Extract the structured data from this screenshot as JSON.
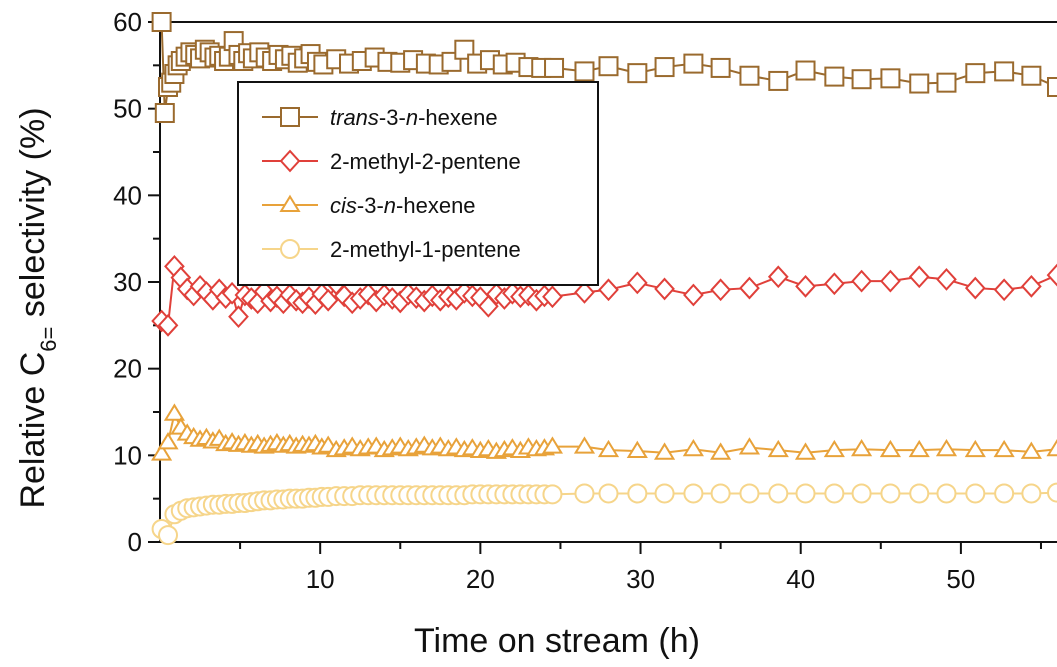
{
  "chart_data": {
    "type": "scatter",
    "xlabel": "Time on stream (h)",
    "ylabel_main": "Relative C",
    "ylabel_sub": "6=",
    "ylabel_rest": " selectivity (%)",
    "xlim": [
      0,
      56
    ],
    "ylim": [
      0,
      60
    ],
    "x_ticks": [
      10,
      20,
      30,
      40,
      50
    ],
    "y_ticks": [
      0,
      10,
      20,
      30,
      40,
      50,
      60
    ],
    "grid": false,
    "legend_position": "top-left",
    "series": [
      {
        "name_italic": "trans",
        "name_rest": "-3-",
        "name_italic2": "n",
        "name_rest2": "-hexene",
        "marker": "square",
        "color": "#9a6a2e",
        "x": [
          0.1,
          0.3,
          0.5,
          0.7,
          0.9,
          1.1,
          1.3,
          1.6,
          1.9,
          2.2,
          2.5,
          2.8,
          3.1,
          3.4,
          3.7,
          4.0,
          4.3,
          4.6,
          4.9,
          5.2,
          5.5,
          5.8,
          6.2,
          6.6,
          7.0,
          7.4,
          7.8,
          8.2,
          8.6,
          9.0,
          9.4,
          9.8,
          10.2,
          11.0,
          11.8,
          12.6,
          13.4,
          14.2,
          15.0,
          15.8,
          16.6,
          17.4,
          18.2,
          19.0,
          19.8,
          20.6,
          21.4,
          22.2,
          23.0,
          23.8,
          24.6,
          26.5,
          28.0,
          29.8,
          31.5,
          33.3,
          35.0,
          36.8,
          38.6,
          40.3,
          42.1,
          43.8,
          45.6,
          47.4,
          49.1,
          50.9,
          52.7,
          54.4,
          56.0
        ],
        "y": [
          60,
          49.5,
          52.5,
          53,
          54,
          55,
          55.5,
          56,
          56.5,
          56.2,
          55.8,
          56.8,
          56.5,
          55.9,
          56.1,
          55.5,
          56,
          57.8,
          56.2,
          55.5,
          56.4,
          55.8,
          56.5,
          55.9,
          55.5,
          56.2,
          55.7,
          56.1,
          55.3,
          55.8,
          56.3,
          55.4,
          55.1,
          55.7,
          55.2,
          55.5,
          55.9,
          55.4,
          55.3,
          55.6,
          55.2,
          55.1,
          55.4,
          56.8,
          55.2,
          55.6,
          55.1,
          55.3,
          54.8,
          54.7,
          54.7,
          54.3,
          54.9,
          54.1,
          54.8,
          55.2,
          54.7,
          53.8,
          53.2,
          54.4,
          53.7,
          53.4,
          53.5,
          52.9,
          53,
          54.1,
          54.3,
          53.8,
          52.5
        ]
      },
      {
        "name": "2-methyl-2-pentene",
        "marker": "diamond",
        "color": "#e0403a",
        "x": [
          0.1,
          0.5,
          0.9,
          1.3,
          1.7,
          2.1,
          2.5,
          2.9,
          3.3,
          3.7,
          4.1,
          4.5,
          4.9,
          5.3,
          5.7,
          6.1,
          6.5,
          6.9,
          7.3,
          7.7,
          8.1,
          8.5,
          8.9,
          9.3,
          9.7,
          10.1,
          10.5,
          11.0,
          11.5,
          12.0,
          12.5,
          13.0,
          13.5,
          14.0,
          14.5,
          15.0,
          15.5,
          16.0,
          16.5,
          17.0,
          17.5,
          18.0,
          18.5,
          19.0,
          19.5,
          20.0,
          20.5,
          21.0,
          21.5,
          22.0,
          22.5,
          23.0,
          23.5,
          24.0,
          24.5,
          26.5,
          28.0,
          29.8,
          31.5,
          33.3,
          35.0,
          36.8,
          38.6,
          40.3,
          42.1,
          43.8,
          45.6,
          47.4,
          49.1,
          50.9,
          52.7,
          54.4,
          56.0
        ],
        "y": [
          25.5,
          25,
          31.8,
          30.5,
          29.2,
          28.5,
          29.5,
          28.8,
          28,
          29.1,
          28.2,
          28.7,
          26,
          28.5,
          28.1,
          27.6,
          28.9,
          27.8,
          28.3,
          27.6,
          28.5,
          27.9,
          27.6,
          28.2,
          27.5,
          28.6,
          27.9,
          29.8,
          28.4,
          27.6,
          28.1,
          28.6,
          27.8,
          28.5,
          28.1,
          27.7,
          28.6,
          28.2,
          27.8,
          28.4,
          27.9,
          28.3,
          28,
          28.8,
          28.4,
          28.2,
          27.2,
          28.6,
          28.1,
          28.7,
          28.3,
          28.5,
          27.9,
          28.4,
          28.3,
          28.8,
          29.1,
          29.9,
          29.2,
          28.5,
          29.1,
          29.3,
          30.6,
          29.5,
          29.8,
          30.1,
          30.1,
          30.6,
          30.3,
          29.3,
          29.1,
          29.5,
          30.8
        ]
      },
      {
        "name_italic": "cis",
        "name_rest": "-3-",
        "name_italic2": "n",
        "name_rest2": "-hexene",
        "marker": "triangle",
        "color": "#e8a23a",
        "x": [
          0.1,
          0.5,
          0.9,
          1.3,
          1.7,
          2.1,
          2.5,
          2.9,
          3.3,
          3.7,
          4.1,
          4.5,
          4.9,
          5.3,
          5.7,
          6.1,
          6.5,
          6.9,
          7.3,
          7.7,
          8.1,
          8.5,
          8.9,
          9.3,
          9.7,
          10.1,
          10.5,
          11.0,
          11.5,
          12.0,
          12.5,
          13.0,
          13.5,
          14.0,
          14.5,
          15.0,
          15.5,
          16.0,
          16.5,
          17.0,
          17.5,
          18.0,
          18.5,
          19.0,
          19.5,
          20.0,
          20.5,
          21.0,
          21.5,
          22.0,
          22.5,
          23.0,
          23.5,
          24.0,
          24.5,
          26.5,
          28.0,
          29.8,
          31.5,
          33.3,
          35.0,
          36.8,
          38.6,
          40.3,
          42.1,
          43.8,
          45.6,
          47.4,
          49.1,
          50.9,
          52.7,
          54.4,
          56.0
        ],
        "y": [
          10.2,
          11.5,
          14.8,
          13.2,
          12.5,
          12.1,
          11.8,
          12,
          11.6,
          11.9,
          11.3,
          11.5,
          11.2,
          11.4,
          11.1,
          11.3,
          11,
          11.2,
          11.4,
          11.1,
          11.3,
          11,
          11.2,
          11.1,
          11.3,
          10.9,
          11.1,
          10.6,
          10.8,
          11,
          10.7,
          10.9,
          11,
          10.6,
          10.8,
          11,
          10.7,
          10.9,
          11.1,
          10.8,
          11,
          10.7,
          10.9,
          10.6,
          10.8,
          10.5,
          10.7,
          10.4,
          10.6,
          10.8,
          10.5,
          10.9,
          10.7,
          10.8,
          11,
          11,
          10.6,
          10.5,
          10.3,
          10.7,
          10.3,
          10.9,
          10.6,
          10.3,
          10.6,
          10.7,
          10.6,
          10.6,
          10.7,
          10.6,
          10.6,
          10.4,
          10.7
        ]
      },
      {
        "name": "2-methyl-1-pentene",
        "marker": "circle",
        "color": "#f6d58a",
        "x": [
          0.1,
          0.5,
          0.9,
          1.3,
          1.7,
          2.1,
          2.5,
          2.9,
          3.3,
          3.7,
          4.1,
          4.5,
          4.9,
          5.3,
          5.7,
          6.1,
          6.5,
          6.9,
          7.3,
          7.7,
          8.1,
          8.5,
          8.9,
          9.3,
          9.7,
          10.1,
          10.5,
          11.0,
          11.5,
          12.0,
          12.5,
          13.0,
          13.5,
          14.0,
          14.5,
          15.0,
          15.5,
          16.0,
          16.5,
          17.0,
          17.5,
          18.0,
          18.5,
          19.0,
          19.5,
          20.0,
          20.5,
          21.0,
          21.5,
          22.0,
          22.5,
          23.0,
          23.5,
          24.0,
          24.5,
          26.5,
          28.0,
          29.8,
          31.5,
          33.3,
          35.0,
          36.8,
          38.6,
          40.3,
          42.1,
          43.8,
          45.6,
          47.4,
          49.1,
          50.9,
          52.7,
          54.4,
          56.0
        ],
        "y": [
          1.5,
          0.8,
          3.2,
          3.6,
          3.9,
          4.0,
          4.1,
          4.2,
          4.3,
          4.3,
          4.4,
          4.4,
          4.5,
          4.5,
          4.6,
          4.7,
          4.8,
          4.8,
          4.9,
          4.9,
          5.0,
          5.0,
          5.0,
          5.1,
          5.1,
          5.2,
          5.2,
          5.3,
          5.3,
          5.3,
          5.4,
          5.4,
          5.4,
          5.4,
          5.4,
          5.4,
          5.4,
          5.4,
          5.4,
          5.4,
          5.4,
          5.4,
          5.4,
          5.4,
          5.5,
          5.5,
          5.5,
          5.5,
          5.5,
          5.5,
          5.5,
          5.5,
          5.5,
          5.5,
          5.5,
          5.6,
          5.6,
          5.6,
          5.6,
          5.6,
          5.6,
          5.6,
          5.6,
          5.6,
          5.6,
          5.6,
          5.6,
          5.6,
          5.6,
          5.6,
          5.6,
          5.6,
          5.7
        ]
      }
    ]
  }
}
